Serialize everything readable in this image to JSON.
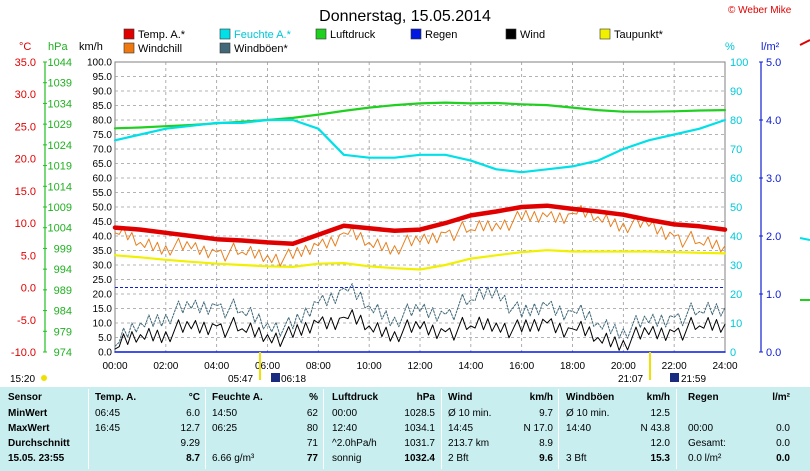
{
  "page": {
    "title": "Donnerstag, 15.05.2014",
    "credit": "© Weber Mike"
  },
  "units": {
    "temp": "°C",
    "pressure": "hPa",
    "speed": "km/h",
    "humidity": "%",
    "rain": "l/m²"
  },
  "legend": [
    {
      "label": "Temp. A.*",
      "color": "#e00000"
    },
    {
      "label": "Feuchte A.*",
      "color": "#00e0e8"
    },
    {
      "label": "Luftdruck",
      "color": "#20d020"
    },
    {
      "label": "Regen",
      "color": "#0018e0"
    },
    {
      "label": "Wind",
      "color": "#000000"
    },
    {
      "label": "Taupunkt*",
      "color": "#f0f000"
    },
    {
      "label": "Windchill",
      "color": "#f07810"
    },
    {
      "label": "Windböen*",
      "color": "#406878"
    }
  ],
  "axes": {
    "temp_ticks": [
      "35.0",
      "30.0",
      "25.0",
      "20.0",
      "15.0",
      "10.0",
      "5.0",
      "0.0",
      "-5.0",
      "-10.0"
    ],
    "pressure_ticks": [
      "1044",
      "1039",
      "1034",
      "1029",
      "1024",
      "1019",
      "1014",
      "1009",
      "1004",
      "999",
      "994",
      "989",
      "984",
      "979",
      "974"
    ],
    "speed_ticks": [
      "100.0",
      "95.0",
      "90.0",
      "85.0",
      "80.0",
      "75.0",
      "70.0",
      "65.0",
      "60.0",
      "55.0",
      "50.0",
      "45.0",
      "40.0",
      "35.0",
      "30.0",
      "25.0",
      "20.0",
      "15.0",
      "10.0",
      "5.0",
      "0.0"
    ],
    "humidity_ticks": [
      "100",
      "90",
      "80",
      "70",
      "60",
      "50",
      "40",
      "30",
      "20",
      "10",
      "0"
    ],
    "rain_ticks": [
      "5.0",
      "4.0",
      "3.0",
      "2.0",
      "1.0",
      "0.0"
    ],
    "time_ticks": [
      "00:00",
      "02:00",
      "04:00",
      "06:00",
      "08:00",
      "10:00",
      "12:00",
      "14:00",
      "16:00",
      "18:00",
      "20:00",
      "22:00",
      "24:00"
    ]
  },
  "sun": {
    "left_time": "15:20",
    "sunrise": "05:47",
    "sunrise2": "06:18",
    "sunset": "21:07",
    "sunset2": "21:59"
  },
  "chart_data": {
    "type": "line",
    "title": "Donnerstag, 15.05.2014",
    "x": [
      0,
      1,
      2,
      3,
      4,
      5,
      6,
      7,
      8,
      9,
      10,
      11,
      12,
      13,
      14,
      15,
      16,
      17,
      18,
      19,
      20,
      21,
      22,
      23,
      24
    ],
    "series": [
      {
        "name": "Temp. A.*",
        "axis": "°C",
        "values": [
          9.3,
          9.0,
          8.5,
          8.0,
          7.5,
          7.3,
          7.0,
          6.8,
          8.2,
          9.6,
          9.2,
          8.8,
          9.0,
          10.0,
          11.2,
          11.8,
          12.5,
          12.7,
          12.2,
          11.8,
          11.3,
          10.5,
          9.8,
          9.5,
          9.0
        ]
      },
      {
        "name": "Windchill",
        "axis": "°C",
        "values": [
          8.5,
          7.0,
          6.5,
          6.0,
          5.5,
          5.5,
          5.0,
          4.5,
          6.5,
          8.5,
          7.0,
          6.5,
          7.0,
          8.5,
          9.0,
          10.0,
          10.5,
          11.0,
          11.5,
          11.0,
          10.0,
          9.5,
          8.0,
          7.0,
          6.5
        ]
      },
      {
        "name": "Taupunkt*",
        "axis": "°C",
        "values": [
          5.0,
          4.7,
          4.3,
          4.0,
          3.7,
          3.5,
          3.3,
          3.2,
          3.7,
          3.8,
          3.3,
          3.0,
          2.8,
          3.5,
          4.5,
          5.0,
          5.5,
          5.8,
          5.6,
          5.6,
          5.6,
          5.6,
          5.5,
          5.4,
          5.3
        ]
      },
      {
        "name": "Feuchte A.*",
        "axis": "%",
        "values": [
          73,
          75,
          77,
          78,
          79,
          79,
          80,
          80,
          77,
          68,
          67,
          67,
          68,
          68,
          66,
          63,
          62,
          63,
          64,
          66,
          70,
          73,
          75,
          77,
          80
        ]
      },
      {
        "name": "Luftdruck",
        "axis": "hPa",
        "values": [
          1028.0,
          1028.2,
          1028.5,
          1028.8,
          1029.2,
          1029.6,
          1030.0,
          1030.5,
          1031.3,
          1032.2,
          1033.0,
          1033.6,
          1034.0,
          1034.2,
          1034.0,
          1034.1,
          1033.8,
          1033.6,
          1033.0,
          1032.4,
          1032.0,
          1032.0,
          1032.1,
          1032.3,
          1032.4
        ]
      },
      {
        "name": "Wind",
        "axis": "km/h",
        "values": [
          1,
          6,
          7,
          8,
          9,
          8,
          6,
          5,
          10,
          12,
          9,
          7,
          8,
          7,
          9,
          10,
          7,
          10,
          8,
          5,
          4,
          6,
          7,
          9,
          9.6
        ]
      },
      {
        "name": "Windböen*",
        "axis": "km/h",
        "values": [
          2,
          10,
          13,
          15,
          16,
          14,
          10,
          8,
          17,
          22,
          16,
          12,
          14,
          13,
          18,
          22,
          12,
          16,
          14,
          10,
          8,
          10,
          12,
          14,
          15.3
        ]
      },
      {
        "name": "Regen",
        "axis": "l/m²",
        "values": [
          0,
          0,
          0,
          0,
          0,
          0,
          0,
          0,
          0,
          0,
          0,
          0,
          0,
          0,
          0,
          0,
          0,
          0,
          0,
          0,
          0,
          0,
          0,
          0,
          0
        ]
      }
    ],
    "xlabel": "",
    "ylim_temp": [
      -10,
      35
    ],
    "ylim_pressure": [
      974,
      1044
    ],
    "ylim_speed": [
      0,
      100
    ],
    "ylim_humidity": [
      0,
      100
    ],
    "ylim_rain": [
      0,
      5
    ],
    "grid": true
  },
  "table": {
    "headers": [
      "Sensor",
      "Temp. A.",
      "°C",
      "Feuchte A.",
      "%",
      "Luftdruck",
      "hPa",
      "Wind",
      "km/h",
      "Windböen",
      "km/h",
      "Regen",
      "l/m²"
    ],
    "rows": [
      {
        "label": "MinWert",
        "c": [
          "06:45",
          "6.0",
          "14:50",
          "62",
          "00:00",
          "1028.5",
          "Ø 10 min.",
          "9.7",
          "Ø 10 min.",
          "12.5",
          "",
          ""
        ]
      },
      {
        "label": "MaxWert",
        "c": [
          "16:45",
          "12.7",
          "06:25",
          "80",
          "12:40",
          "1034.1",
          "14:45",
          "N 17.0",
          "14:40",
          "N 43.8",
          "00:00",
          "0.0"
        ]
      },
      {
        "label": "Durchschnitt",
        "c": [
          "",
          "9.29",
          "",
          "71",
          "^2.0hPa/h",
          "1031.7",
          "213.7 km",
          "8.9",
          "",
          "12.0",
          "Gesamt:",
          "0.0"
        ]
      },
      {
        "label": "15.05. 23:55",
        "c": [
          "",
          "8.7",
          "6.66 g/m³",
          "77",
          "sonnig",
          "1032.4",
          "2 Bft",
          "9.6",
          "3 Bft",
          "15.3",
          "0.0 l/m²",
          "0.0"
        ]
      }
    ]
  }
}
